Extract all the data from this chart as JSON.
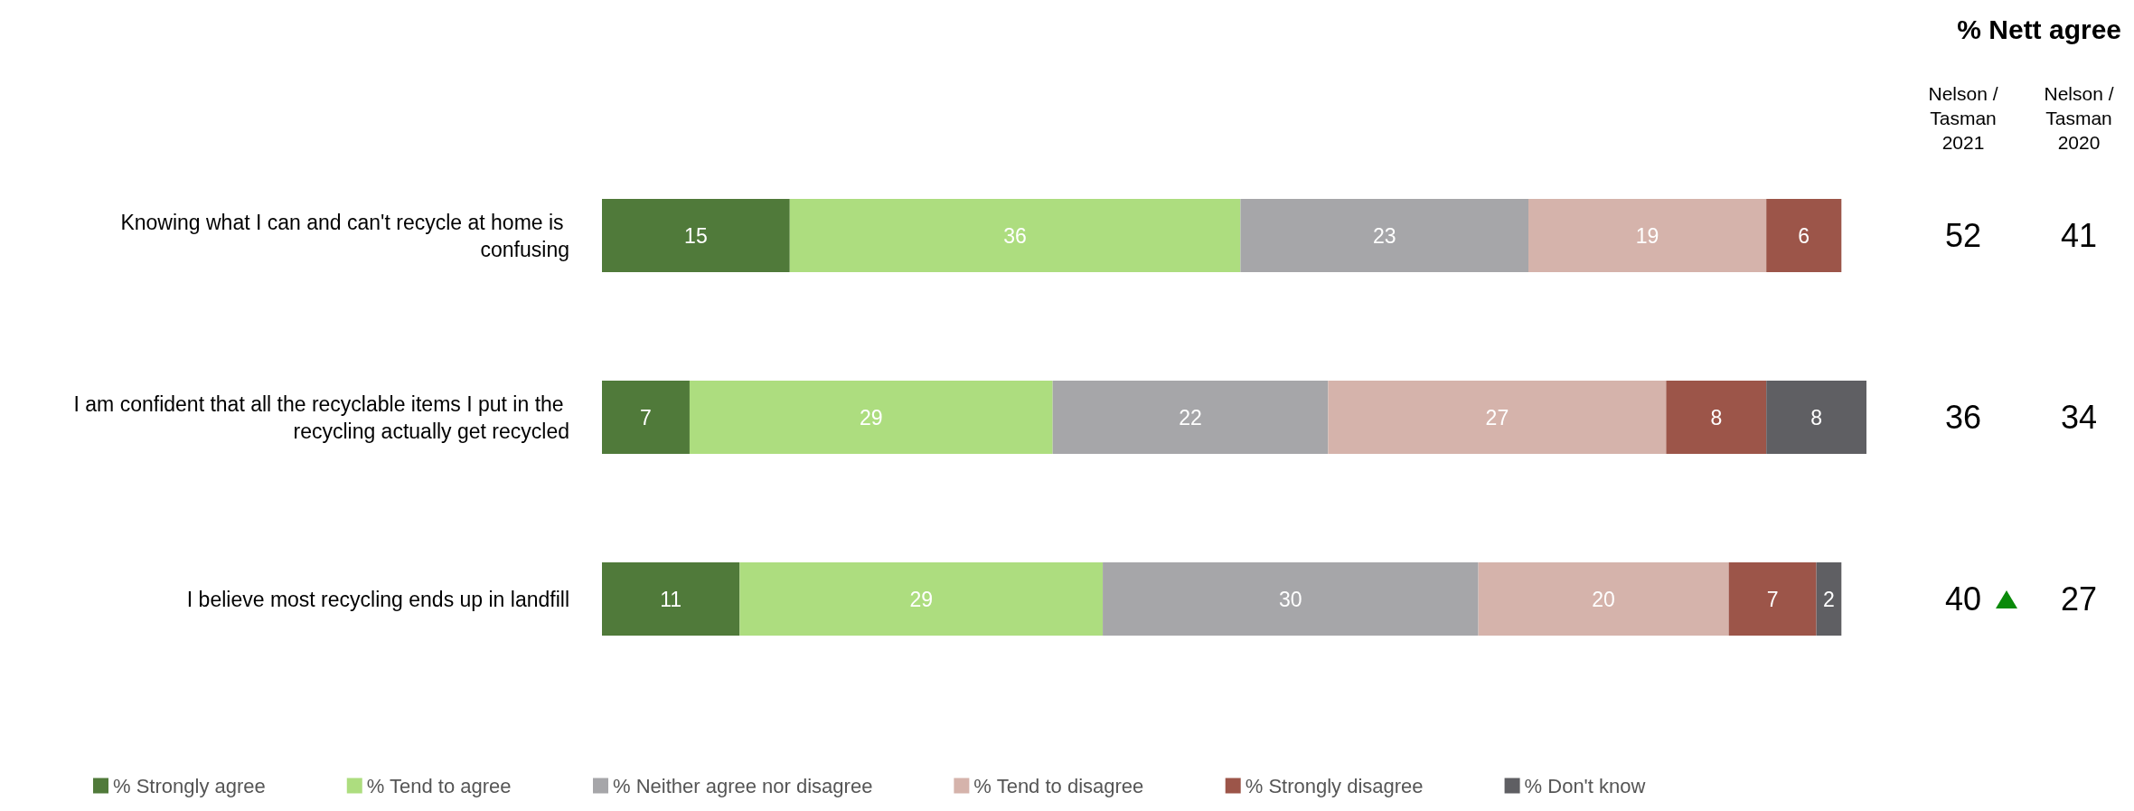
{
  "chart_data": {
    "type": "bar",
    "orientation": "horizontal",
    "stacked": true,
    "data_labels": true,
    "legend": "bottom",
    "categories": [
      "Knowing what I can and can't recycle at home is confusing",
      "I am confident that all the recyclable items I put in the recycling actually get recycled",
      "I believe most recycling ends up in landfill"
    ],
    "series": [
      {
        "name": "% Strongly agree",
        "color": "#507a3a",
        "values": [
          15,
          7,
          11
        ]
      },
      {
        "name": "% Tend to agree",
        "color": "#addd7f",
        "values": [
          36,
          29,
          29
        ]
      },
      {
        "name": "% Neither agree nor disagree",
        "color": "#a6a6a9",
        "values": [
          23,
          22,
          30
        ]
      },
      {
        "name": "% Tend to disagree",
        "color": "#d5b3ab",
        "values": [
          19,
          27,
          20
        ]
      },
      {
        "name": "% Strongly disagree",
        "color": "#9c5549",
        "values": [
          6,
          8,
          7
        ]
      },
      {
        "name": "% Don't know",
        "color": "#5f5f63",
        "values": [
          null,
          8,
          2
        ]
      }
    ],
    "annotations": [
      "% Nett agree",
      "Nelson / Tasman 2021",
      "Nelson / Tasman 2020",
      "52",
      "41",
      "36",
      "34",
      "40",
      "27"
    ]
  }
}
